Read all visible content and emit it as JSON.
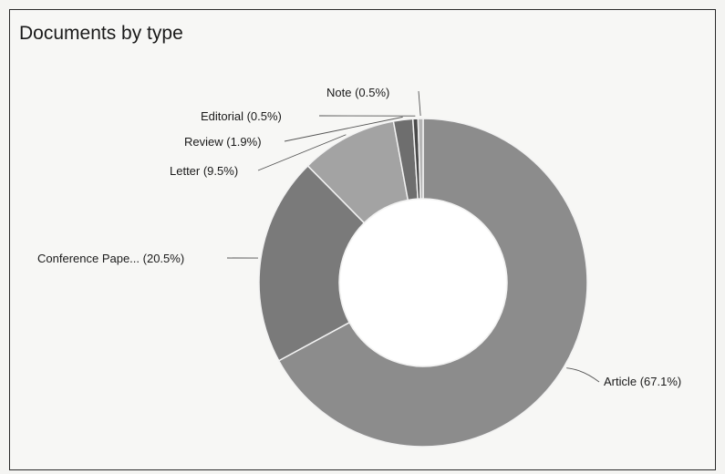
{
  "chart_data": {
    "type": "pie",
    "title": "Documents by type",
    "donut": true,
    "slices": [
      {
        "label": "Article (67.1%)",
        "category": "Article",
        "value": 67.1,
        "color": "#8c8c8c"
      },
      {
        "label": "Conference Pape... (20.5%)",
        "category": "Conference Pape...",
        "value": 20.5,
        "color": "#7a7a7a"
      },
      {
        "label": "Letter (9.5%)",
        "category": "Letter",
        "value": 9.5,
        "color": "#a3a3a3"
      },
      {
        "label": "Review (1.9%)",
        "category": "Review",
        "value": 1.9,
        "color": "#6e6e6e"
      },
      {
        "label": "Editorial (0.5%)",
        "category": "Editorial",
        "value": 0.5,
        "color": "#4a4a4a"
      },
      {
        "label": "Note (0.5%)",
        "category": "Note",
        "value": 0.5,
        "color": "#b5b5b5"
      }
    ],
    "legend": "none"
  }
}
